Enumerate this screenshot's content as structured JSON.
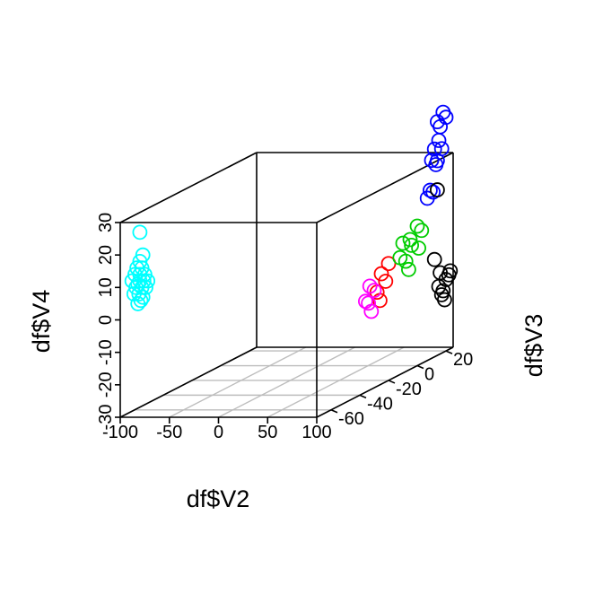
{
  "chart_data": {
    "type": "scatter",
    "projection": "3d",
    "title": "",
    "xlabel": "df$V2",
    "ylabel": "df$V3",
    "zlabel": "df$V4",
    "xlim": [
      -100,
      100
    ],
    "ylim": [
      -70,
      25
    ],
    "zlim": [
      -30,
      30
    ],
    "x_ticks": [
      "-100",
      "-50",
      "0",
      "50",
      "100"
    ],
    "y_ticks": [
      "-60",
      "-40",
      "-20",
      "0",
      "20"
    ],
    "z_ticks": [
      "-30",
      "-20",
      "-10",
      "0",
      "10",
      "20",
      "30"
    ],
    "grid": "x-y floor",
    "marker": "open-circle",
    "series": [
      {
        "color": "#00ffff",
        "points": [
          [
            -80,
            -70,
            18
          ],
          [
            -77,
            -70,
            20
          ],
          [
            -83,
            -70,
            16
          ],
          [
            -75,
            -70,
            14
          ],
          [
            -85,
            -70,
            14
          ],
          [
            -80,
            -70,
            14
          ],
          [
            -82,
            -70,
            11
          ],
          [
            -78,
            -70,
            10
          ],
          [
            -76,
            -70,
            12
          ],
          [
            -84,
            -70,
            10
          ],
          [
            -81,
            -70,
            8
          ],
          [
            -79,
            -70,
            6
          ],
          [
            -74,
            -70,
            10
          ],
          [
            -86,
            -70,
            8
          ],
          [
            -80,
            -70,
            12
          ],
          [
            -78,
            -70,
            16
          ],
          [
            -72,
            -70,
            12
          ],
          [
            -88,
            -70,
            12
          ],
          [
            -82,
            -70,
            5
          ],
          [
            -77,
            -70,
            7
          ],
          [
            -80,
            -70,
            27
          ]
        ]
      },
      {
        "color": "#ff0000",
        "points": [
          [
            100,
            -25,
            4
          ],
          [
            100,
            -22,
            1
          ],
          [
            100,
            -28,
            -1
          ],
          [
            100,
            -20,
            6
          ],
          [
            100,
            -26,
            -4
          ]
        ]
      },
      {
        "color": "#ff00ff",
        "points": [
          [
            100,
            -30,
            0
          ],
          [
            100,
            -34,
            -3
          ],
          [
            100,
            -32,
            -6
          ],
          [
            100,
            -36,
            -2
          ],
          [
            100,
            -33,
            2
          ]
        ]
      },
      {
        "color": "#00cc00",
        "points": [
          [
            100,
            -12,
            6
          ],
          [
            100,
            -5,
            10
          ],
          [
            100,
            0,
            13
          ],
          [
            100,
            -8,
            4
          ],
          [
            100,
            1,
            6
          ],
          [
            100,
            -4,
            8
          ],
          [
            100,
            -10,
            10
          ],
          [
            100,
            3,
            11
          ],
          [
            100,
            -6,
            1
          ]
        ]
      },
      {
        "color": "#0000ff",
        "points": [
          [
            100,
            14,
            42
          ],
          [
            100,
            18,
            44
          ],
          [
            100,
            16,
            40
          ],
          [
            100,
            20,
            42
          ],
          [
            100,
            12,
            34
          ],
          [
            100,
            14,
            30
          ],
          [
            100,
            17,
            33
          ],
          [
            100,
            10,
            31
          ],
          [
            100,
            13,
            29
          ],
          [
            100,
            15,
            36
          ],
          [
            100,
            7,
            20
          ],
          [
            100,
            9,
            22
          ],
          [
            100,
            11,
            21
          ]
        ]
      },
      {
        "color": "#000000",
        "points": [
          [
            100,
            14,
            21
          ],
          [
            100,
            12,
            0
          ],
          [
            100,
            16,
            -5
          ],
          [
            100,
            20,
            -8
          ],
          [
            100,
            18,
            -11
          ],
          [
            100,
            22,
            -7
          ],
          [
            100,
            17,
            -12
          ],
          [
            100,
            23,
            -6
          ],
          [
            100,
            19,
            -14
          ],
          [
            100,
            15,
            -9
          ]
        ]
      }
    ]
  }
}
